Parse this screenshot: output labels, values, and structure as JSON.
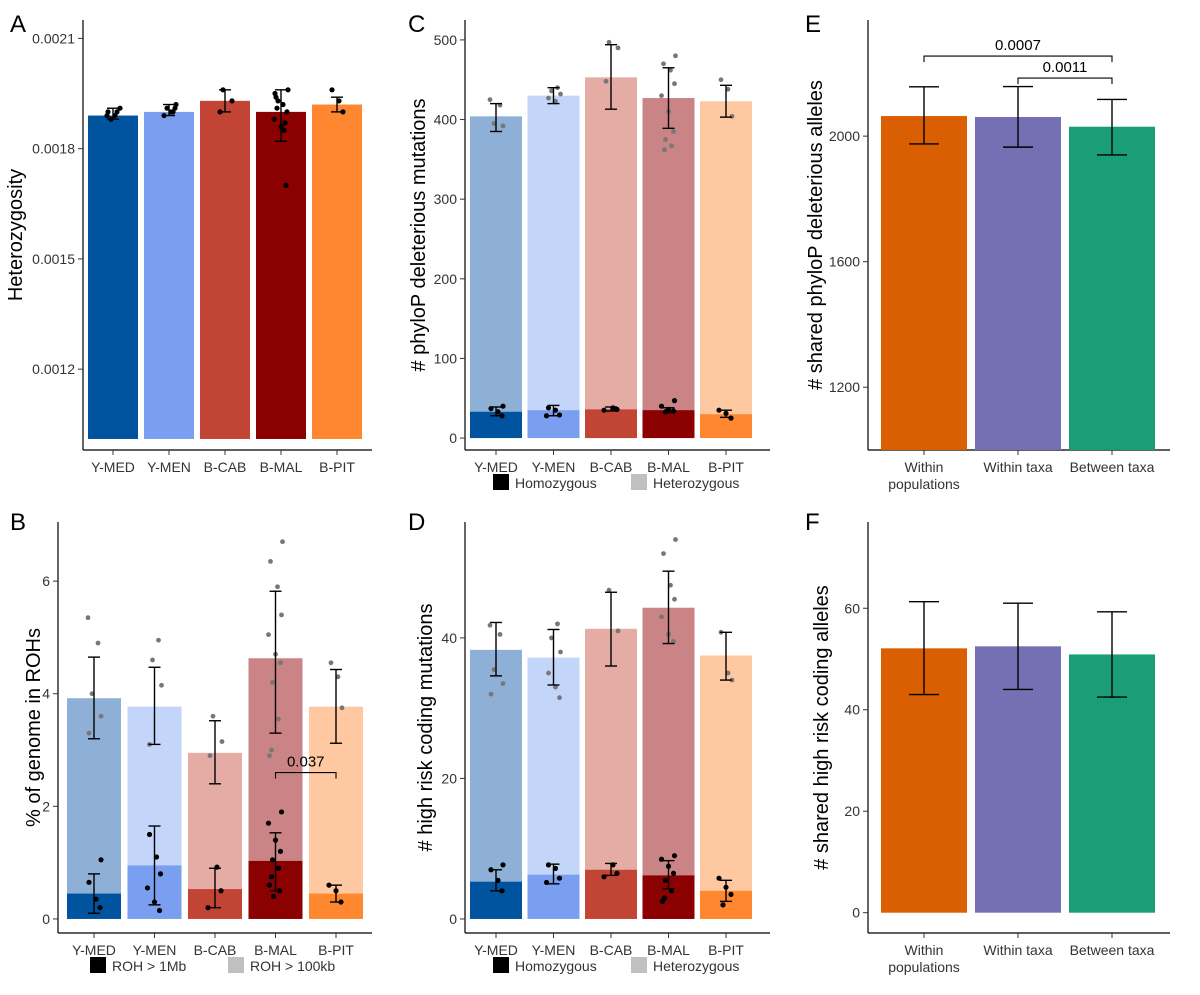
{
  "chart_data": [
    {
      "panel": "A",
      "type": "bar",
      "ylabel": "Heterozygosity",
      "categories": [
        "Y-MED",
        "Y-MEN",
        "B-CAB",
        "B-MAL",
        "B-PIT"
      ],
      "colors": [
        "#00539f",
        "#7a9ef0",
        "#c24434",
        "#8b0000",
        "#ff8730"
      ],
      "values": [
        0.00189,
        0.0019,
        0.00193,
        0.0019,
        0.00192
      ],
      "err_low": [
        0.00188,
        0.00189,
        0.0019,
        0.00182,
        0.0019
      ],
      "err_high": [
        0.00191,
        0.00192,
        0.00196,
        0.00196,
        0.00194
      ],
      "points": [
        [
          0.00189,
          0.0019,
          0.00188,
          0.00191,
          0.0019,
          0.00189
        ],
        [
          0.0019,
          0.00191,
          0.00192,
          0.00189,
          0.0019,
          0.00191
        ],
        [
          0.00196,
          0.00193,
          0.0019
        ],
        [
          0.00196,
          0.00194,
          0.00192,
          0.0019,
          0.00188,
          0.00186,
          0.0017,
          0.00193,
          0.00185,
          0.00191,
          0.00195,
          0.00187
        ],
        [
          0.00196,
          0.00193,
          0.0019
        ]
      ],
      "yticks": [
        0.0012,
        0.0015,
        0.0018,
        0.0021
      ],
      "ytick_labels": [
        "0.0012",
        "0.0015",
        "0.0018",
        "0.0021"
      ],
      "ylim": [
        0.00098,
        0.00215
      ]
    },
    {
      "panel": "B",
      "type": "stacked-bar",
      "ylabel": "% of genome in ROHs",
      "categories": [
        "Y-MED",
        "Y-MEN",
        "B-CAB",
        "B-MAL",
        "B-PIT"
      ],
      "colors": [
        "#00539f",
        "#7a9ef0",
        "#c24434",
        "#8b0000",
        "#ff8730"
      ],
      "light_colors": [
        "#8eb0d6",
        "#c3d5f8",
        "#e5aca5",
        "#cb8486",
        "#fec8a0"
      ],
      "values_total": [
        3.92,
        3.77,
        2.95,
        4.63,
        3.77
      ],
      "values_dark": [
        0.45,
        0.95,
        0.53,
        1.03,
        0.45
      ],
      "err_total_low": [
        3.2,
        3.1,
        2.4,
        3.3,
        3.12
      ],
      "err_total_high": [
        4.65,
        4.47,
        3.52,
        5.82,
        4.43
      ],
      "err_dark_low": [
        0.1,
        0.25,
        0.2,
        0.5,
        0.3
      ],
      "err_dark_high": [
        0.8,
        1.65,
        0.9,
        1.53,
        0.6
      ],
      "points_total": [
        [
          5.35,
          4.9,
          4.0,
          3.6,
          3.3
        ],
        [
          4.95,
          4.6,
          4.15,
          3.1
        ],
        [
          3.6,
          3.15,
          2.9
        ],
        [
          6.7,
          6.35,
          5.9,
          5.4,
          5.05,
          4.7,
          4.55,
          4.2,
          3.55,
          3.0,
          2.9
        ],
        [
          4.55,
          4.3,
          3.75
        ]
      ],
      "points_dark": [
        [
          1.05,
          0.65,
          0.35,
          0.2
        ],
        [
          1.5,
          1.1,
          0.8,
          0.55,
          0.3,
          0.15
        ],
        [
          0.92,
          0.5,
          0.2
        ],
        [
          1.9,
          1.7,
          1.4,
          1.2,
          1.05,
          0.9,
          0.75,
          0.6,
          0.5,
          0.4
        ],
        [
          0.6,
          0.5,
          0.3
        ]
      ],
      "yticks": [
        0,
        2,
        4,
        6
      ],
      "ytick_labels": [
        "0",
        "2",
        "4",
        "6"
      ],
      "ylim": [
        -0.25,
        7.05
      ],
      "annotation": {
        "label": "0.037",
        "from": 3,
        "to": 4,
        "y": 2.6
      },
      "legend": [
        "ROH > 1Mb",
        "ROH > 100kb"
      ]
    },
    {
      "panel": "C",
      "type": "stacked-bar",
      "ylabel": "# phyloP deleterious mutations",
      "categories": [
        "Y-MED",
        "Y-MEN",
        "B-CAB",
        "B-MAL",
        "B-PIT"
      ],
      "colors": [
        "#00539f",
        "#7a9ef0",
        "#c24434",
        "#8b0000",
        "#ff8730"
      ],
      "light_colors": [
        "#8eb0d6",
        "#c3d5f8",
        "#e5aca5",
        "#cb8486",
        "#fec8a0"
      ],
      "values_total": [
        404,
        430,
        453,
        427,
        423
      ],
      "values_dark": [
        33,
        35,
        36,
        35,
        30
      ],
      "err_total_low": [
        385,
        420,
        413,
        389,
        403
      ],
      "err_total_high": [
        420,
        440,
        494,
        465,
        443
      ],
      "err_dark_low": [
        28,
        28,
        34,
        32,
        26
      ],
      "err_dark_high": [
        39,
        41,
        39,
        38,
        35
      ],
      "points_total": [
        [
          425,
          418,
          395,
          392
        ],
        [
          440,
          436,
          432,
          427,
          423
        ],
        [
          497,
          490,
          448
        ],
        [
          480,
          470,
          462,
          445,
          430,
          410,
          385,
          375,
          367,
          362
        ],
        [
          450,
          438,
          404
        ]
      ],
      "points_dark": [
        [
          40,
          37,
          33,
          28
        ],
        [
          38,
          35,
          29,
          28
        ],
        [
          38,
          36,
          35
        ],
        [
          47,
          40,
          36,
          34,
          33
        ],
        [
          35,
          31,
          25
        ]
      ],
      "yticks": [
        0,
        100,
        200,
        300,
        400,
        500
      ],
      "ytick_labels": [
        "0",
        "100",
        "200",
        "300",
        "400",
        "500"
      ],
      "ylim": [
        -15,
        525
      ],
      "legend": [
        "Homozygous",
        "Heterozygous"
      ]
    },
    {
      "panel": "D",
      "type": "stacked-bar",
      "ylabel": "# high risk coding mutations",
      "categories": [
        "Y-MED",
        "Y-MEN",
        "B-CAB",
        "B-MAL",
        "B-PIT"
      ],
      "colors": [
        "#00539f",
        "#7a9ef0",
        "#c24434",
        "#8b0000",
        "#ff8730"
      ],
      "light_colors": [
        "#8eb0d6",
        "#c3d5f8",
        "#e5aca5",
        "#cb8486",
        "#fec8a0"
      ],
      "values_total": [
        38.3,
        37.2,
        41.3,
        44.3,
        37.5
      ],
      "values_dark": [
        5.3,
        6.3,
        7.0,
        6.2,
        4.0
      ],
      "err_total_low": [
        34.6,
        33.3,
        36.0,
        39.2,
        34.0
      ],
      "err_total_high": [
        42.2,
        41.2,
        46.5,
        49.5,
        40.8
      ],
      "err_dark_low": [
        4.0,
        5.0,
        6.2,
        4.3,
        2.5
      ],
      "err_dark_high": [
        7.0,
        7.8,
        7.9,
        8.3,
        5.5
      ],
      "points_total": [
        [
          41.8,
          40.5,
          35.5,
          33.5,
          32.0
        ],
        [
          42.0,
          40.0,
          38.0,
          35.0,
          33.0,
          31.5
        ],
        [
          46.8,
          41.0
        ],
        [
          54.0,
          52.0,
          47.5,
          45.5,
          43.0,
          40.5,
          39.5
        ],
        [
          40.8,
          35.0,
          34.0
        ]
      ],
      "points_dark": [
        [
          7.7,
          7.0,
          5.5,
          4.0
        ],
        [
          7.7,
          7.2,
          5.8,
          5.2
        ],
        [
          7.7,
          6.5,
          6.0
        ],
        [
          9.0,
          8.5,
          7.5,
          6.5,
          5.5,
          4.0,
          3.0,
          2.5
        ],
        [
          5.8,
          4.5,
          3.5,
          2.0
        ]
      ],
      "yticks": [
        0,
        20,
        40
      ],
      "ytick_labels": [
        "0",
        "20",
        "40"
      ],
      "ylim": [
        -2,
        56.5
      ],
      "legend": [
        "Homozygous",
        "Heterozygous"
      ]
    },
    {
      "panel": "E",
      "type": "bar",
      "ylabel": "# shared phyloP deleterious alleles",
      "categories": [
        "Within\npopulations",
        "Within taxa",
        "Between taxa"
      ],
      "colors": [
        "#d95f02",
        "#7570b3",
        "#1b9e77"
      ],
      "values": [
        2064,
        2061,
        2030
      ],
      "err_low": [
        1975,
        1965,
        1940
      ],
      "err_high": [
        2157,
        2158,
        2117
      ],
      "yticks": [
        1200,
        1600,
        2000
      ],
      "ytick_labels": [
        "1200",
        "1600",
        "2000"
      ],
      "ylim": [
        1000,
        2370
      ],
      "annotations": [
        {
          "label": "0.0007",
          "from": 0,
          "to": 2,
          "y": 2255
        },
        {
          "label": "0.0011",
          "from": 1,
          "to": 2,
          "y": 2185
        }
      ]
    },
    {
      "panel": "F",
      "type": "bar",
      "ylabel": "# shared high risk coding alleles",
      "categories": [
        "Within\npopulations",
        "Within taxa",
        "Between taxa"
      ],
      "colors": [
        "#d95f02",
        "#7570b3",
        "#1b9e77"
      ],
      "values": [
        52.1,
        52.5,
        50.9
      ],
      "err_low": [
        43.0,
        44.0,
        42.5
      ],
      "err_high": [
        61.3,
        61.0,
        59.3
      ],
      "yticks": [
        0,
        20,
        40,
        60
      ],
      "ytick_labels": [
        "0",
        "20",
        "40",
        "60"
      ],
      "ylim": [
        -4,
        77
      ]
    }
  ]
}
